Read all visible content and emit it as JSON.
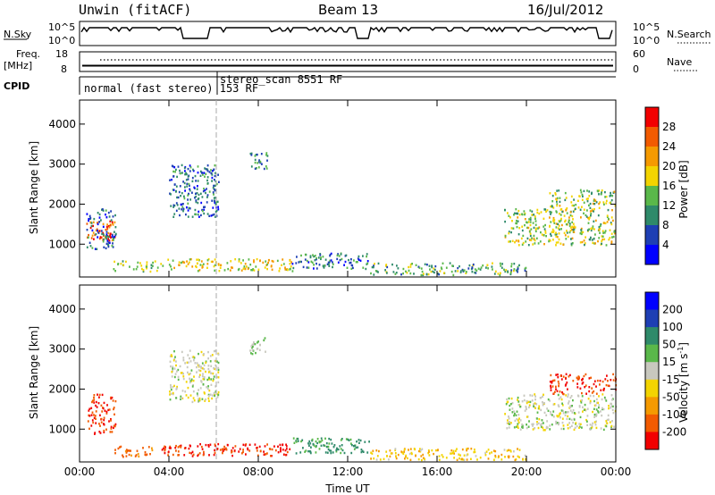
{
  "header": {
    "title": "Unwin (fitACF)",
    "beam": "Beam 13",
    "date": "16/Jul/2012"
  },
  "nsky_panel": {
    "left_label": "N.Sky",
    "left_ticks": [
      "10^5",
      "10^0"
    ],
    "right_ticks": [
      "10^5",
      "10^0"
    ],
    "right_label": "N.Search"
  },
  "freq_panel": {
    "left_label_top": "Freq.",
    "left_label_unit": "[MHz]",
    "left_ticks": [
      "18",
      "8"
    ],
    "right_ticks": [
      "60",
      "0"
    ],
    "right_label": "Nave"
  },
  "cpid_panel": {
    "label": "CPID",
    "programs": [
      {
        "name": "normal (fast stereo) 153 RF",
        "start_hour": 0
      },
      {
        "name": "stereo_scan 8551 RF",
        "start_hour": 6.8
      }
    ]
  },
  "chart_data": [
    {
      "type": "heatmap",
      "title": "",
      "ylabel": "Slant Range [km]",
      "xlabel": "",
      "xlim": [
        0,
        24
      ],
      "ylim": [
        180,
        4600
      ],
      "yticks": [
        "1000",
        "2000",
        "3000",
        "4000"
      ],
      "colorbar": {
        "label": "Power [dB]",
        "ticks": [
          "4",
          "8",
          "12",
          "16",
          "20",
          "24",
          "28"
        ],
        "colors": [
          "#0000ff",
          "#1e3fb4",
          "#2f8a6a",
          "#5ab84a",
          "#f3d400",
          "#f59a00",
          "#f25b00",
          "#f20000"
        ]
      },
      "echo_regions": [
        {
          "h0": 0.3,
          "h1": 1.6,
          "r0": 1100,
          "r1": 1600,
          "val": 26
        },
        {
          "h0": 0.3,
          "h1": 1.6,
          "r0": 900,
          "r1": 1900,
          "val": 8
        },
        {
          "h0": 1.5,
          "h1": 3.5,
          "r0": 330,
          "r1": 600,
          "val": 14
        },
        {
          "h0": 3.6,
          "h1": 9.5,
          "r0": 350,
          "r1": 650,
          "val": 18
        },
        {
          "h0": 4.0,
          "h1": 6.2,
          "r0": 1700,
          "r1": 3000,
          "val": 8
        },
        {
          "h0": 7.6,
          "h1": 8.4,
          "r0": 2900,
          "r1": 3300,
          "val": 10
        },
        {
          "h0": 9.5,
          "h1": 13.0,
          "r0": 400,
          "r1": 800,
          "val": 9
        },
        {
          "h0": 13.0,
          "h1": 20.0,
          "r0": 250,
          "r1": 550,
          "val": 12
        },
        {
          "h0": 19.0,
          "h1": 24.0,
          "r0": 1000,
          "r1": 1900,
          "val": 16
        },
        {
          "h0": 21.0,
          "h1": 24.0,
          "r0": 1900,
          "r1": 2400,
          "val": 15
        }
      ]
    },
    {
      "type": "heatmap",
      "title": "",
      "ylabel": "Slant Range [km]",
      "xlabel": "Time UT",
      "xlim": [
        0,
        24
      ],
      "ylim": [
        180,
        4600
      ],
      "yticks": [
        "1000",
        "2000",
        "3000",
        "4000"
      ],
      "xticks": [
        "00:00",
        "04:00",
        "08:00",
        "12:00",
        "16:00",
        "20:00",
        "00:00"
      ],
      "colorbar": {
        "label": "Velocity [m s",
        "label_sup": "-1",
        "label_end": "]",
        "ticks": [
          "-200",
          "-100",
          "-50",
          "-15",
          "15",
          "50",
          "100",
          "200"
        ],
        "colors": [
          "#f20000",
          "#f25b00",
          "#f59a00",
          "#f3d400",
          "#c8c8be",
          "#5ab84a",
          "#2f8a6a",
          "#1e3fb4",
          "#0000ff"
        ]
      },
      "echo_regions": [
        {
          "h0": 0.3,
          "h1": 1.6,
          "r0": 900,
          "r1": 1900,
          "val": -200
        },
        {
          "h0": 1.5,
          "h1": 3.5,
          "r0": 330,
          "r1": 600,
          "val": -120
        },
        {
          "h0": 3.6,
          "h1": 9.5,
          "r0": 350,
          "r1": 650,
          "val": -200
        },
        {
          "h0": 4.0,
          "h1": 6.2,
          "r0": 1700,
          "r1": 3000,
          "val": 0
        },
        {
          "h0": 7.6,
          "h1": 8.4,
          "r0": 2900,
          "r1": 3300,
          "val": 20
        },
        {
          "h0": 9.5,
          "h1": 13.0,
          "r0": 400,
          "r1": 800,
          "val": 60
        },
        {
          "h0": 13.0,
          "h1": 20.0,
          "r0": 250,
          "r1": 550,
          "val": -40
        },
        {
          "h0": 19.0,
          "h1": 24.0,
          "r0": 1000,
          "r1": 1900,
          "val": 0
        },
        {
          "h0": 21.0,
          "h1": 24.0,
          "r0": 1900,
          "r1": 2400,
          "val": -200
        }
      ]
    }
  ]
}
